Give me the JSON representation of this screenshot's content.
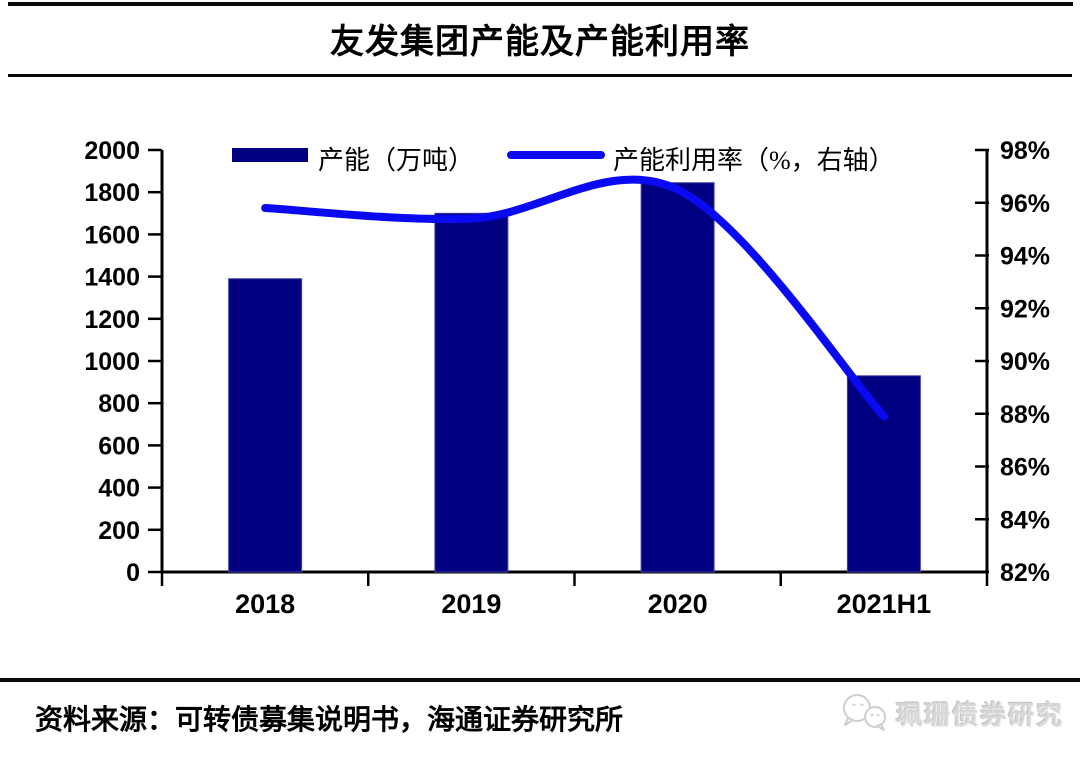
{
  "header": {
    "title": "友发集团产能及产能利用率"
  },
  "chart_data": {
    "type": "bar+line combo",
    "categories": [
      "2018",
      "2019",
      "2020",
      "2021H1"
    ],
    "series": [
      {
        "name": "产能（万吨）",
        "type": "bar",
        "axis": "left",
        "values": [
          1390,
          1700,
          1845,
          930
        ],
        "color": "#000080"
      },
      {
        "name": "产能利用率（%，右轴）",
        "type": "line",
        "axis": "right",
        "values": [
          95.8,
          95.4,
          96.5,
          87.9
        ],
        "color": "#0909F2"
      }
    ],
    "left_axis": {
      "min": 0,
      "max": 2000,
      "step": 200,
      "tick_labels": [
        "0",
        "200",
        "400",
        "600",
        "800",
        "1000",
        "1200",
        "1400",
        "1600",
        "1800",
        "2000"
      ]
    },
    "right_axis": {
      "min": 82,
      "max": 98,
      "step": 2,
      "tick_labels": [
        "82%",
        "84%",
        "86%",
        "88%",
        "90%",
        "92%",
        "94%",
        "96%",
        "98%"
      ]
    },
    "legend_position": "top",
    "grid": false,
    "bar_border_color": "#4343a8",
    "axis_color": "#000000"
  },
  "footer": {
    "source": "资料来源：可转债募集说明书，海通证券研究所",
    "watermark": "珮珊债券研究",
    "watermark_icon": "wechat-icon"
  }
}
